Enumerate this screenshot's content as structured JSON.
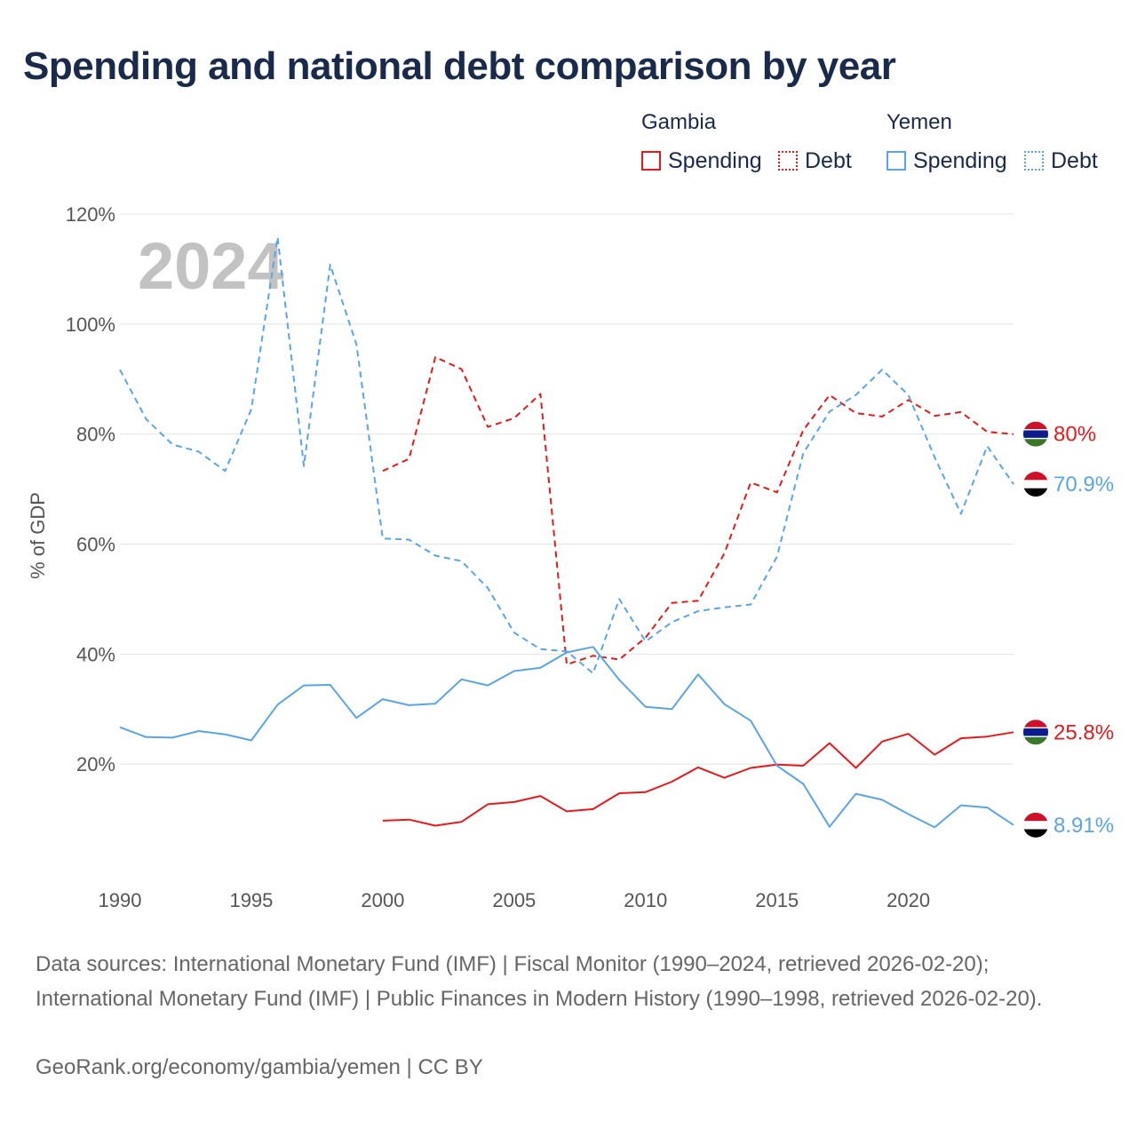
{
  "title": "Spending and national debt comparison by year",
  "legend": {
    "gambia": {
      "title": "Gambia",
      "spending": "Spending",
      "debt": "Debt",
      "color": "#e8191c"
    },
    "yemen": {
      "title": "Yemen",
      "spending": "Spending",
      "debt": "Debt",
      "color": "#5aa5e6"
    }
  },
  "chart_data": {
    "type": "line",
    "title": "Spending and national debt comparison by year",
    "ylabel": "% of GDP",
    "xlabel": "",
    "year_watermark": "2024",
    "xlim": [
      1990,
      2024
    ],
    "ylim": [
      0,
      120
    ],
    "x_ticks": [
      "1990",
      "1995",
      "2000",
      "2005",
      "2010",
      "2015",
      "2020"
    ],
    "y_ticks": [
      "20%",
      "40%",
      "60%",
      "80%",
      "100%",
      "120%"
    ],
    "grid": true,
    "series": [
      {
        "name": "Gambia Debt",
        "country": "Gambia",
        "metric": "Debt",
        "style": "dashed",
        "color": "#e8191c",
        "end_label": "80%",
        "x": [
          2000,
          2001,
          2002,
          2003,
          2004,
          2005,
          2006,
          2007,
          2008,
          2009,
          2010,
          2011,
          2012,
          2013,
          2014,
          2015,
          2016,
          2017,
          2018,
          2019,
          2020,
          2021,
          2022,
          2023,
          2024
        ],
        "values": [
          73.3,
          75.5,
          94.0,
          91.8,
          81.3,
          82.9,
          87.3,
          38.1,
          39.7,
          39.0,
          43.0,
          49.3,
          49.7,
          58.3,
          71.2,
          69.4,
          80.7,
          87.1,
          83.8,
          83.2,
          86.2,
          83.3,
          84.0,
          80.4,
          80.0
        ]
      },
      {
        "name": "Yemen Debt",
        "country": "Yemen",
        "metric": "Debt",
        "style": "dashed",
        "color": "#5aa5e6",
        "end_label": "70.9%",
        "x": [
          1990,
          1991,
          1992,
          1993,
          1994,
          1995,
          1996,
          1997,
          1998,
          1999,
          2000,
          2001,
          2002,
          2003,
          2004,
          2005,
          2006,
          2007,
          2008,
          2009,
          2010,
          2011,
          2012,
          2013,
          2014,
          2015,
          2016,
          2017,
          2018,
          2019,
          2020,
          2021,
          2022,
          2023,
          2024
        ],
        "values": [
          91.7,
          82.7,
          78.1,
          76.8,
          73.3,
          84.5,
          115.8,
          74.2,
          110.8,
          96.3,
          61.0,
          60.8,
          57.9,
          56.9,
          52.0,
          43.9,
          40.9,
          40.5,
          36.5,
          50.0,
          42.3,
          45.8,
          47.8,
          48.5,
          49.0,
          57.7,
          76.5,
          84.1,
          87.1,
          91.7,
          87.1,
          75.8,
          65.5,
          77.8,
          70.9
        ]
      },
      {
        "name": "Gambia Spending",
        "country": "Gambia",
        "metric": "Spending",
        "style": "solid",
        "color": "#e8191c",
        "end_label": "25.8%",
        "x": [
          2000,
          2001,
          2002,
          2003,
          2004,
          2005,
          2006,
          2007,
          2008,
          2009,
          2010,
          2011,
          2012,
          2013,
          2014,
          2015,
          2016,
          2017,
          2018,
          2019,
          2020,
          2021,
          2022,
          2023,
          2024
        ],
        "values": [
          9.7,
          9.9,
          8.8,
          9.5,
          12.7,
          13.1,
          14.2,
          11.4,
          11.8,
          14.7,
          14.9,
          16.8,
          19.4,
          17.5,
          19.3,
          19.9,
          19.7,
          23.8,
          19.3,
          24.1,
          25.5,
          21.7,
          24.7,
          25.0,
          25.8
        ]
      },
      {
        "name": "Yemen Spending",
        "country": "Yemen",
        "metric": "Spending",
        "style": "solid",
        "color": "#5aa5e6",
        "end_label": "8.91%",
        "x": [
          1990,
          1991,
          1992,
          1993,
          1994,
          1995,
          1996,
          1997,
          1998,
          1999,
          2000,
          2001,
          2002,
          2003,
          2004,
          2005,
          2006,
          2007,
          2008,
          2009,
          2010,
          2011,
          2012,
          2013,
          2014,
          2015,
          2016,
          2017,
          2018,
          2019,
          2020,
          2021,
          2022,
          2023,
          2024
        ],
        "values": [
          26.7,
          24.9,
          24.8,
          26.0,
          25.4,
          24.3,
          30.8,
          34.3,
          34.4,
          28.4,
          31.8,
          30.7,
          31.0,
          35.4,
          34.3,
          36.9,
          37.5,
          40.3,
          41.3,
          35.3,
          30.4,
          30.0,
          36.3,
          30.9,
          27.9,
          19.7,
          16.4,
          8.6,
          14.6,
          13.5,
          10.9,
          8.5,
          12.5,
          12.1,
          8.91
        ]
      }
    ]
  },
  "footer": {
    "sources": "Data sources: International Monetary Fund (IMF) | Fiscal Monitor (1990–2024, retrieved 2026-02-20); International Monetary Fund (IMF) | Public Finances in Modern History (1990–1998, retrieved 2026-02-20).",
    "credit": "GeoRank.org/economy/gambia/yemen | CC BY"
  }
}
